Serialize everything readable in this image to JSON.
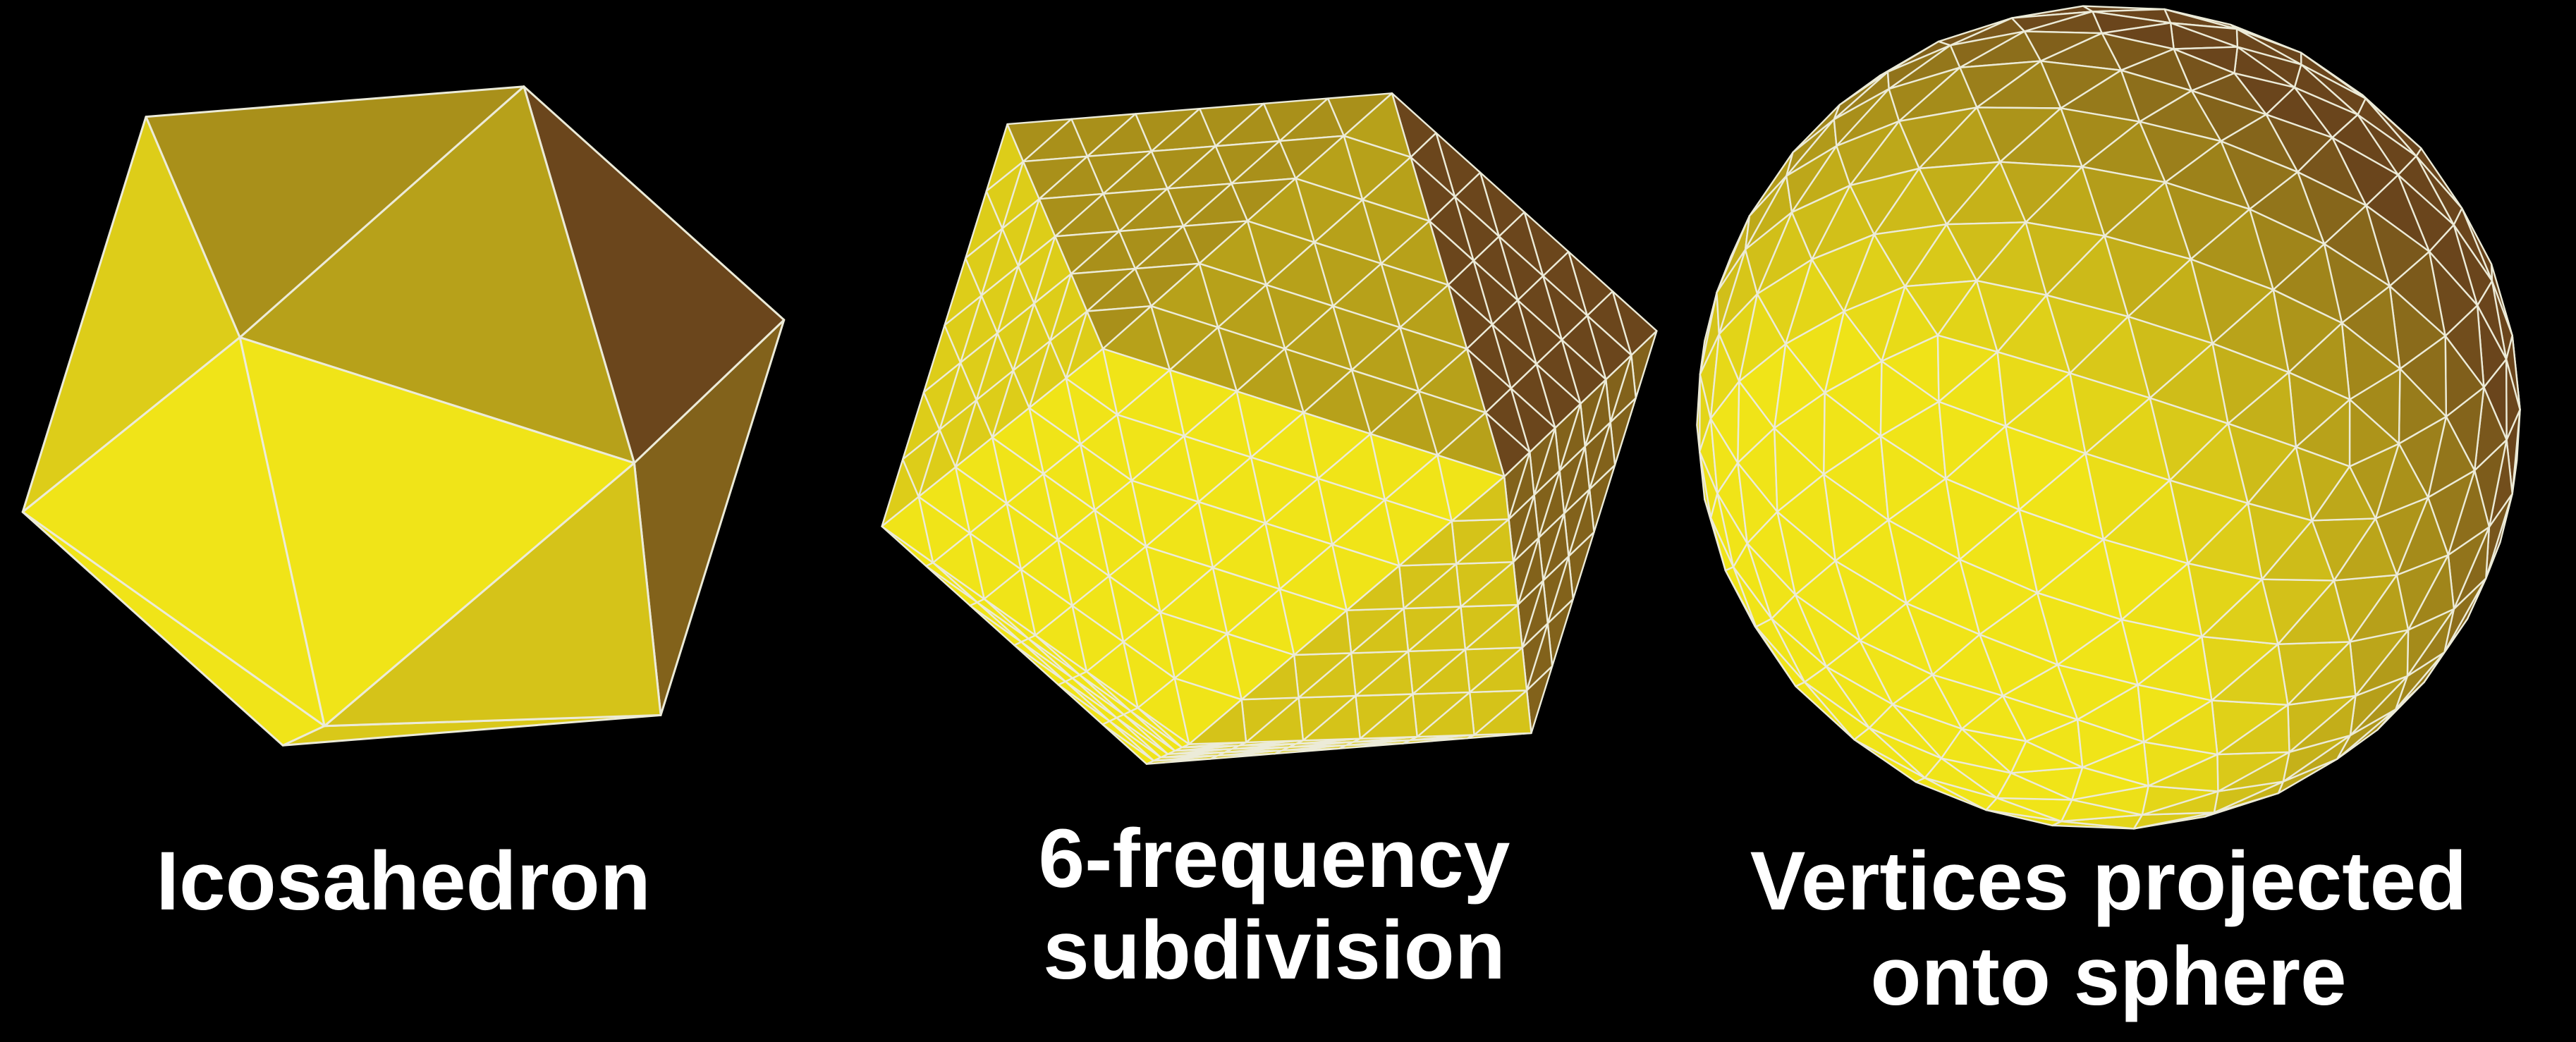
{
  "panels": [
    {
      "id": "icosahedron",
      "frequency": 1,
      "projected_to_sphere": false,
      "caption_lines": [
        "Icosahedron"
      ]
    },
    {
      "id": "subdivision",
      "frequency": 6,
      "projected_to_sphere": false,
      "caption_lines": [
        "6-frequency",
        "subdivision"
      ]
    },
    {
      "id": "sphere",
      "frequency": 6,
      "projected_to_sphere": true,
      "caption_lines": [
        "Vertices projected",
        "onto sphere"
      ]
    }
  ],
  "colors": {
    "background": "#000000",
    "edge": "#ecebd8",
    "face_light": "#f0e418",
    "face_dark": "#6a451c",
    "caption": "#ffffff"
  }
}
